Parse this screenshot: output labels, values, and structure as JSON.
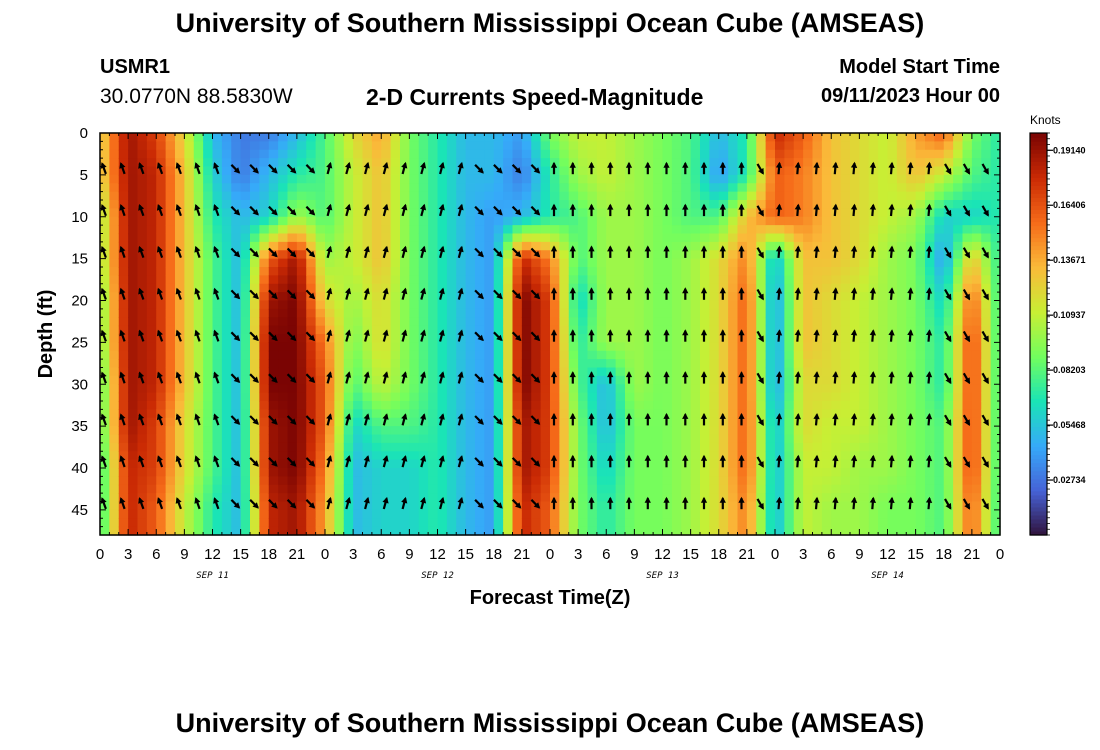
{
  "header": {
    "title": "University of Southern Mississippi Ocean Cube (AMSEAS)",
    "station": "USMR1",
    "coords": "30.0770N  88.5830W",
    "subtitle": "2-D Currents Speed-Magnitude",
    "model_start_label": "Model Start Time",
    "model_start_value": "09/11/2023 Hour 00"
  },
  "footer": {
    "title": "University of Southern Mississippi Ocean Cube (AMSEAS)"
  },
  "colors": {
    "background": "#ffffff",
    "text": "#000000",
    "colormap": [
      "#30123b",
      "#4662d7",
      "#36aaf9",
      "#1ae4b6",
      "#72fe5e",
      "#c8ef34",
      "#faba39",
      "#f66b19",
      "#ca2a04",
      "#7a0403"
    ]
  },
  "chart_data": {
    "type": "heatmap",
    "title": "2-D Currents Speed-Magnitude",
    "xlabel": "Forecast Time(Z)",
    "ylabel": "Depth (ft)",
    "x_unit": "hours since 09/11/2023 00Z",
    "xlim": [
      0,
      96
    ],
    "ylim": [
      0,
      48
    ],
    "x_ticks": [
      0,
      3,
      6,
      9,
      12,
      15,
      18,
      21,
      24,
      27,
      30,
      33,
      36,
      39,
      42,
      45,
      48,
      51,
      54,
      57,
      60,
      63,
      66,
      69,
      72,
      75,
      78,
      81,
      84,
      87,
      90,
      93,
      96
    ],
    "x_tick_labels": [
      "0",
      "3",
      "6",
      "9",
      "12",
      "15",
      "18",
      "21",
      "0",
      "3",
      "6",
      "9",
      "12",
      "15",
      "18",
      "21",
      "0",
      "3",
      "6",
      "9",
      "12",
      "15",
      "18",
      "21",
      "0",
      "3",
      "6",
      "9",
      "12",
      "15",
      "18",
      "21",
      "0"
    ],
    "y_ticks": [
      0,
      5,
      10,
      15,
      20,
      25,
      30,
      35,
      40,
      45
    ],
    "date_labels": [
      {
        "text": "SEP 11",
        "hour": 12
      },
      {
        "text": "SEP 12",
        "hour": 36
      },
      {
        "text": "SEP 13",
        "hour": 60
      },
      {
        "text": "SEP 14",
        "hour": 84
      }
    ],
    "colorbar": {
      "title": "Knots",
      "min": 0.0,
      "max": 0.2,
      "tick_values": [
        0.1914,
        0.16406,
        0.13671,
        0.10937,
        0.08203,
        0.05468,
        0.02734
      ],
      "tick_labels": [
        "0.19140",
        "0.16406",
        "0.13671",
        "0.10937",
        "0.08203",
        "0.05468",
        "0.02734"
      ]
    },
    "speed_grid": {
      "units": "knots",
      "x_hours": [
        0,
        3,
        6,
        9,
        12,
        15,
        18,
        21,
        24,
        27,
        30,
        33,
        36,
        39,
        42,
        45,
        48,
        51,
        54,
        57,
        60,
        63,
        66,
        69,
        72,
        75,
        78,
        81,
        84,
        87,
        90,
        93,
        96
      ],
      "depths_ft": [
        0,
        5,
        10,
        15,
        20,
        25,
        30,
        35,
        40,
        45,
        48
      ],
      "values": [
        [
          0.12,
          0.19,
          0.17,
          0.12,
          0.05,
          0.03,
          0.03,
          0.05,
          0.08,
          0.12,
          0.14,
          0.09,
          0.07,
          0.05,
          0.05,
          0.04,
          0.09,
          0.11,
          0.11,
          0.1,
          0.09,
          0.08,
          0.05,
          0.07,
          0.18,
          0.16,
          0.13,
          0.12,
          0.11,
          0.14,
          0.16,
          0.09,
          0.07
        ],
        [
          0.12,
          0.19,
          0.18,
          0.13,
          0.06,
          0.03,
          0.05,
          0.07,
          0.08,
          0.11,
          0.13,
          0.09,
          0.07,
          0.05,
          0.05,
          0.03,
          0.07,
          0.1,
          0.11,
          0.1,
          0.09,
          0.08,
          0.04,
          0.07,
          0.16,
          0.15,
          0.13,
          0.12,
          0.11,
          0.13,
          0.11,
          0.08,
          0.07
        ],
        [
          0.1,
          0.19,
          0.18,
          0.13,
          0.07,
          0.05,
          0.06,
          0.1,
          0.08,
          0.11,
          0.13,
          0.09,
          0.07,
          0.05,
          0.04,
          0.05,
          0.07,
          0.08,
          0.1,
          0.1,
          0.09,
          0.08,
          0.08,
          0.13,
          0.16,
          0.15,
          0.13,
          0.12,
          0.11,
          0.1,
          0.06,
          0.06,
          0.07
        ],
        [
          0.1,
          0.19,
          0.18,
          0.13,
          0.08,
          0.05,
          0.16,
          0.19,
          0.1,
          0.11,
          0.13,
          0.09,
          0.07,
          0.05,
          0.04,
          0.18,
          0.15,
          0.08,
          0.1,
          0.1,
          0.09,
          0.1,
          0.12,
          0.15,
          0.05,
          0.13,
          0.13,
          0.12,
          0.1,
          0.09,
          0.04,
          0.13,
          0.07
        ],
        [
          0.09,
          0.19,
          0.18,
          0.13,
          0.08,
          0.05,
          0.19,
          0.2,
          0.12,
          0.1,
          0.12,
          0.09,
          0.07,
          0.05,
          0.04,
          0.2,
          0.17,
          0.06,
          0.1,
          0.1,
          0.09,
          0.1,
          0.12,
          0.16,
          0.04,
          0.13,
          0.12,
          0.11,
          0.1,
          0.09,
          0.06,
          0.16,
          0.07
        ],
        [
          0.09,
          0.19,
          0.18,
          0.13,
          0.08,
          0.05,
          0.2,
          0.2,
          0.15,
          0.09,
          0.12,
          0.09,
          0.07,
          0.05,
          0.04,
          0.2,
          0.17,
          0.07,
          0.1,
          0.1,
          0.09,
          0.1,
          0.12,
          0.16,
          0.04,
          0.13,
          0.12,
          0.11,
          0.1,
          0.09,
          0.07,
          0.17,
          0.07
        ],
        [
          0.08,
          0.19,
          0.18,
          0.13,
          0.08,
          0.05,
          0.2,
          0.2,
          0.16,
          0.08,
          0.11,
          0.09,
          0.07,
          0.05,
          0.04,
          0.2,
          0.17,
          0.08,
          0.05,
          0.1,
          0.09,
          0.1,
          0.12,
          0.16,
          0.04,
          0.12,
          0.12,
          0.11,
          0.1,
          0.09,
          0.07,
          0.17,
          0.07
        ],
        [
          0.08,
          0.19,
          0.17,
          0.12,
          0.08,
          0.05,
          0.19,
          0.2,
          0.16,
          0.06,
          0.08,
          0.08,
          0.07,
          0.05,
          0.04,
          0.19,
          0.17,
          0.09,
          0.05,
          0.09,
          0.09,
          0.1,
          0.12,
          0.16,
          0.05,
          0.12,
          0.11,
          0.11,
          0.1,
          0.09,
          0.08,
          0.17,
          0.07
        ],
        [
          0.07,
          0.18,
          0.17,
          0.12,
          0.08,
          0.05,
          0.19,
          0.2,
          0.15,
          0.05,
          0.06,
          0.06,
          0.07,
          0.05,
          0.04,
          0.19,
          0.17,
          0.09,
          0.06,
          0.09,
          0.09,
          0.1,
          0.12,
          0.16,
          0.05,
          0.11,
          0.11,
          0.1,
          0.1,
          0.09,
          0.08,
          0.17,
          0.07
        ],
        [
          0.07,
          0.18,
          0.16,
          0.11,
          0.07,
          0.05,
          0.18,
          0.19,
          0.14,
          0.05,
          0.06,
          0.06,
          0.07,
          0.05,
          0.04,
          0.18,
          0.16,
          0.09,
          0.07,
          0.09,
          0.09,
          0.1,
          0.12,
          0.15,
          0.05,
          0.11,
          0.1,
          0.1,
          0.09,
          0.09,
          0.08,
          0.16,
          0.07
        ],
        [
          0.07,
          0.18,
          0.16,
          0.11,
          0.07,
          0.05,
          0.18,
          0.19,
          0.14,
          0.05,
          0.06,
          0.06,
          0.07,
          0.05,
          0.04,
          0.18,
          0.16,
          0.09,
          0.07,
          0.09,
          0.09,
          0.1,
          0.12,
          0.15,
          0.05,
          0.11,
          0.1,
          0.1,
          0.09,
          0.09,
          0.08,
          0.16,
          0.07
        ]
      ]
    },
    "vector_field": {
      "description": "current direction arrows, angle in degrees clockwise from north",
      "hours": [
        0,
        2,
        4,
        6,
        8,
        10,
        12,
        14,
        16,
        18,
        20,
        22,
        24,
        26,
        28,
        30,
        32,
        34,
        36,
        38,
        40,
        42,
        44,
        46,
        48,
        50,
        52,
        54,
        56,
        58,
        60,
        62,
        64,
        66,
        68,
        70,
        72,
        74,
        76,
        78,
        80,
        82,
        84,
        86,
        88,
        90,
        92,
        94
      ],
      "depths_ft": [
        4.5,
        9.5,
        14.5,
        19.5,
        24.5,
        29.5,
        34.5,
        39.5,
        44.5
      ],
      "regimes": [
        {
          "from_hour": 0,
          "to_hour": 14,
          "angle_deg": -20
        },
        {
          "from_hour": 14,
          "to_hour": 24,
          "angle_deg": 135
        },
        {
          "from_hour": 24,
          "to_hour": 39,
          "angle_deg": 15
        },
        {
          "from_hour": 39,
          "to_hour": 48,
          "angle_deg": 135
        },
        {
          "from_hour": 48,
          "to_hour": 69,
          "angle_deg": 0
        },
        {
          "from_hour": 69,
          "to_hour": 72,
          "angle_deg": 150
        },
        {
          "from_hour": 72,
          "to_hour": 90,
          "angle_deg": 5
        },
        {
          "from_hour": 90,
          "to_hour": 96,
          "angle_deg": 150
        }
      ]
    }
  }
}
